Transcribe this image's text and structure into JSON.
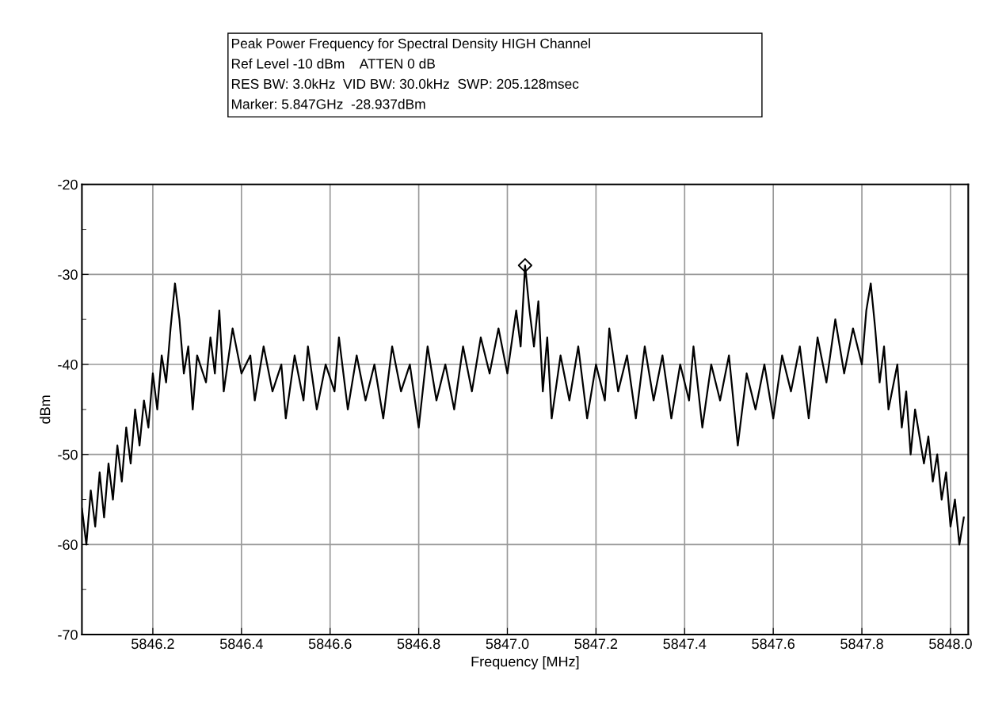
{
  "chart_data": {
    "type": "line",
    "xlabel": "Frequency [MHz]",
    "ylabel": "dBm",
    "annotations": [
      "Peak Power Frequency for Spectral Density HIGH Channel",
      "Ref Level -10 dBm    ATTEN 0 dB",
      "RES BW: 3.0kHz  VID BW: 30.0kHz  SWP: 205.128msec",
      "Marker: 5.847GHz  -28.937dBm"
    ],
    "xlim": [
      5846.04,
      5848.04
    ],
    "ylim": [
      -70,
      -20
    ],
    "xticks": [
      {
        "value": 5846.2,
        "label": "5846.2"
      },
      {
        "value": 5846.4,
        "label": "5846.4"
      },
      {
        "value": 5846.6,
        "label": "5846.6"
      },
      {
        "value": 5846.8,
        "label": "5846.8"
      },
      {
        "value": 5847.0,
        "label": "5847.0"
      },
      {
        "value": 5847.2,
        "label": "5847.2"
      },
      {
        "value": 5847.4,
        "label": "5847.4"
      },
      {
        "value": 5847.6,
        "label": "5847.6"
      },
      {
        "value": 5847.8,
        "label": "5847.8"
      },
      {
        "value": 5848.0,
        "label": "5848.0"
      }
    ],
    "yticks": [
      -70,
      {
        "value": -65,
        "label": null
      },
      -60,
      {
        "value": -55,
        "label": null
      },
      -50,
      {
        "value": -45,
        "label": null
      },
      -40,
      {
        "value": -35,
        "label": null
      },
      -30,
      {
        "value": -25,
        "label": null
      },
      -20
    ],
    "grid": true,
    "legend": false,
    "line_style": "solid",
    "series": [
      {
        "color": "#000000",
        "x": [
          5846.04,
          5846.05,
          5846.06,
          5846.07,
          5846.08,
          5846.09,
          5846.1,
          5846.11,
          5846.12,
          5846.13,
          5846.14,
          5846.15,
          5846.16,
          5846.17,
          5846.18,
          5846.19,
          5846.2,
          5846.21,
          5846.22,
          5846.23,
          5846.24,
          5846.25,
          5846.26,
          5846.27,
          5846.28,
          5846.29,
          5846.3,
          5846.32,
          5846.33,
          5846.34,
          5846.35,
          5846.36,
          5846.38,
          5846.4,
          5846.42,
          5846.43,
          5846.45,
          5846.47,
          5846.49,
          5846.5,
          5846.52,
          5846.54,
          5846.55,
          5846.57,
          5846.59,
          5846.61,
          5846.62,
          5846.64,
          5846.66,
          5846.68,
          5846.7,
          5846.72,
          5846.74,
          5846.76,
          5846.78,
          5846.8,
          5846.82,
          5846.84,
          5846.86,
          5846.88,
          5846.9,
          5846.92,
          5846.94,
          5846.96,
          5846.98,
          5847.0,
          5847.02,
          5847.03,
          5847.04,
          5847.05,
          5847.06,
          5847.07,
          5847.08,
          5847.09,
          5847.1,
          5847.12,
          5847.14,
          5847.16,
          5847.18,
          5847.2,
          5847.22,
          5847.23,
          5847.25,
          5847.27,
          5847.29,
          5847.31,
          5847.33,
          5847.35,
          5847.37,
          5847.39,
          5847.41,
          5847.42,
          5847.44,
          5847.46,
          5847.48,
          5847.5,
          5847.52,
          5847.54,
          5847.56,
          5847.58,
          5847.6,
          5847.62,
          5847.64,
          5847.66,
          5847.68,
          5847.7,
          5847.72,
          5847.74,
          5847.76,
          5847.78,
          5847.8,
          5847.81,
          5847.82,
          5847.83,
          5847.84,
          5847.85,
          5847.86,
          5847.88,
          5847.89,
          5847.9,
          5847.91,
          5847.92,
          5847.94,
          5847.95,
          5847.96,
          5847.97,
          5847.98,
          5847.99,
          5848.0,
          5848.01,
          5848.02,
          5848.03
        ],
        "values": [
          -56,
          -60,
          -54,
          -58,
          -52,
          -57,
          -51,
          -55,
          -49,
          -53,
          -47,
          -51,
          -45,
          -49,
          -44,
          -47,
          -41,
          -45,
          -39,
          -42,
          -36,
          -31,
          -35,
          -41,
          -38,
          -45,
          -39,
          -42,
          -37,
          -41,
          -34,
          -43,
          -36,
          -41,
          -39,
          -44,
          -38,
          -43,
          -40,
          -46,
          -39,
          -44,
          -38,
          -45,
          -40,
          -43,
          -37,
          -45,
          -39,
          -44,
          -40,
          -46,
          -38,
          -43,
          -40,
          -47,
          -38,
          -44,
          -40,
          -45,
          -38,
          -43,
          -37,
          -41,
          -36,
          -41,
          -34,
          -38,
          -29,
          -34,
          -38,
          -33,
          -43,
          -37,
          -46,
          -39,
          -44,
          -38,
          -46,
          -40,
          -44,
          -36,
          -43,
          -39,
          -46,
          -38,
          -44,
          -39,
          -46,
          -40,
          -44,
          -38,
          -47,
          -40,
          -44,
          -39,
          -49,
          -41,
          -45,
          -40,
          -46,
          -39,
          -43,
          -38,
          -46,
          -37,
          -42,
          -35,
          -41,
          -36,
          -40,
          -34,
          -31,
          -36,
          -42,
          -38,
          -45,
          -40,
          -47,
          -43,
          -50,
          -45,
          -51,
          -48,
          -53,
          -50,
          -55,
          -52,
          -58,
          -55,
          -60,
          -57
        ]
      },
      {
        "type": "scatter",
        "color": "#000000",
        "marker": "diamond",
        "x": [
          5847.04
        ],
        "values": [
          -29
        ]
      }
    ]
  }
}
